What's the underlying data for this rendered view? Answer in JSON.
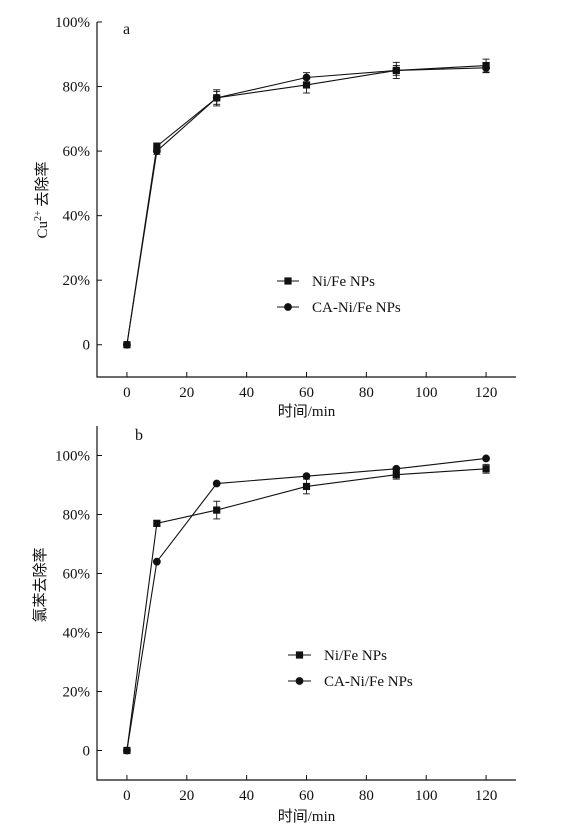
{
  "chart_data": [
    {
      "type": "line",
      "panel_label": "a",
      "xlabel": "时间/min",
      "ylabel": "去除率",
      "ylabel_prefix": "Cu",
      "ylabel_sup": "2+",
      "xlim": [
        -10,
        130
      ],
      "ylim": [
        -10,
        100
      ],
      "x_ticks": [
        0,
        20,
        40,
        60,
        80,
        100,
        120
      ],
      "y_ticks": [
        0,
        20,
        40,
        60,
        80,
        100
      ],
      "y_tick_labels": [
        "0",
        "20%",
        "40%",
        "60%",
        "80%",
        "100%"
      ],
      "legend_position": "center-right",
      "series": [
        {
          "name": "Ni/Fe NPs",
          "marker": "square",
          "x": [
            0,
            10,
            30,
            60,
            90,
            120
          ],
          "y": [
            0,
            61.5,
            76.5,
            80.5,
            85,
            86.5
          ],
          "err": [
            0,
            1,
            2.5,
            2.5,
            2.5,
            2
          ]
        },
        {
          "name": "CA-Ni/Fe NPs",
          "marker": "circle",
          "x": [
            0,
            10,
            30,
            60,
            90,
            120
          ],
          "y": [
            0,
            60,
            76.5,
            82.8,
            85,
            85.8
          ],
          "err": [
            0,
            1,
            2,
            1.5,
            1.5,
            1.5
          ]
        }
      ]
    },
    {
      "type": "line",
      "panel_label": "b",
      "xlabel": "时间/min",
      "ylabel": "氯苯去除率",
      "xlim": [
        -10,
        130
      ],
      "ylim": [
        -10,
        110
      ],
      "x_ticks": [
        0,
        20,
        40,
        60,
        80,
        100,
        120
      ],
      "y_ticks": [
        0,
        20,
        40,
        60,
        80,
        100
      ],
      "y_tick_labels": [
        "0",
        "20%",
        "40%",
        "60%",
        "80%",
        "100%"
      ],
      "legend_position": "center-right",
      "series": [
        {
          "name": "Ni/Fe NPs",
          "marker": "square",
          "x": [
            0,
            10,
            30,
            60,
            90,
            120
          ],
          "y": [
            0,
            77,
            81.5,
            89.5,
            93.5,
            95.5
          ],
          "err": [
            0,
            1,
            3,
            2.5,
            1.5,
            1.5
          ]
        },
        {
          "name": "CA-Ni/Fe NPs",
          "marker": "circle",
          "x": [
            0,
            10,
            30,
            60,
            90,
            120
          ],
          "y": [
            0,
            64,
            90.5,
            93,
            95.5,
            99
          ],
          "err": [
            0,
            0,
            0,
            0,
            0,
            0
          ]
        }
      ]
    }
  ]
}
